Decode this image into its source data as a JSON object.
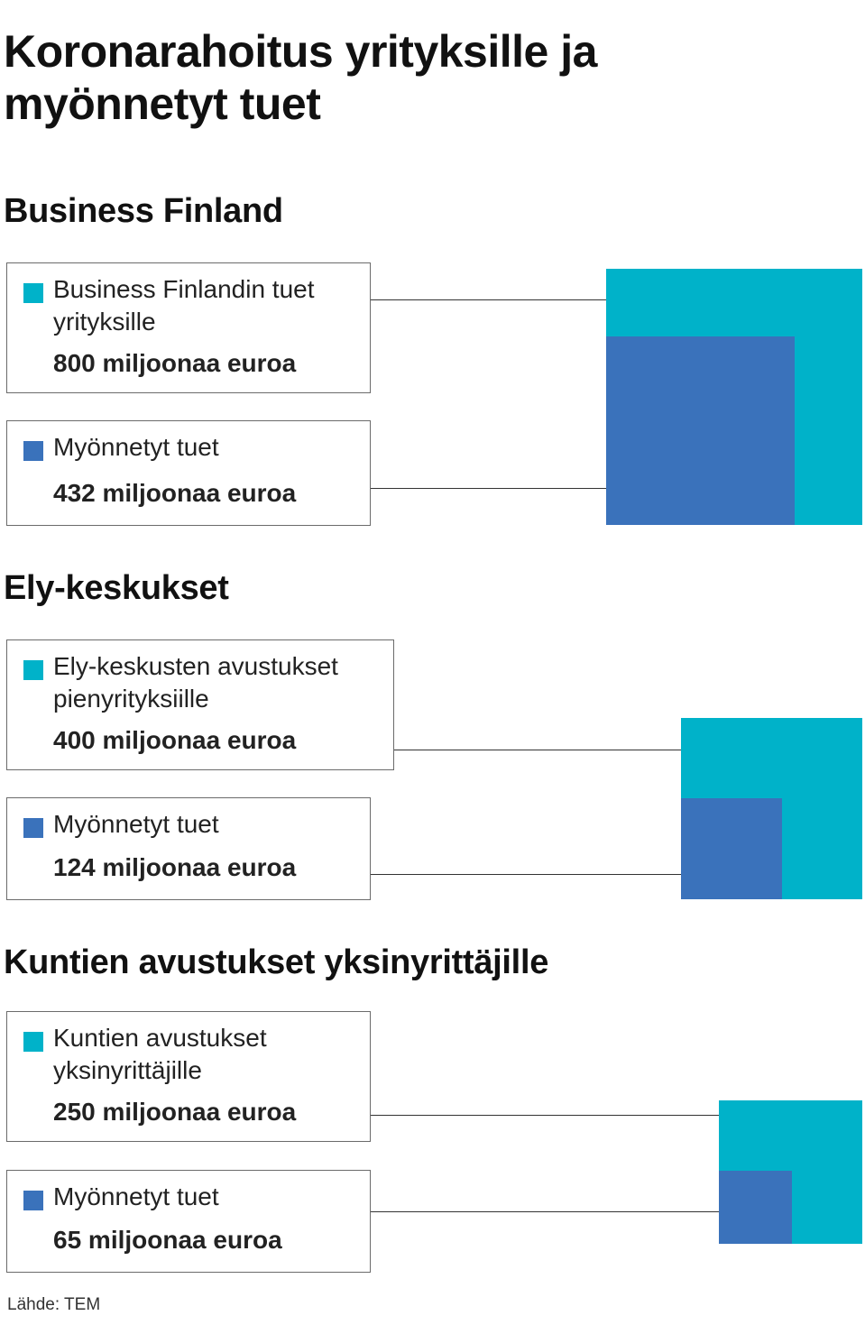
{
  "title": "Koronarahoitus yrityksille ja myönnetyt tuet",
  "source": "Lähde: TEM",
  "colors": {
    "total": "#00b2c9",
    "granted": "#3a72bb"
  },
  "chart_data": [
    {
      "type": "nested-square",
      "title": "Business Finland",
      "series": [
        {
          "name": "Business Finlandin tuet yrityksille",
          "value": 800,
          "value_label": "800 miljoonaa euroa"
        },
        {
          "name": "Myönnetyt tuet",
          "value": 432,
          "value_label": "432 miljoonaa euroa"
        }
      ],
      "unit": "miljoonaa euroa"
    },
    {
      "type": "nested-square",
      "title": "Ely-keskukset",
      "series": [
        {
          "name": "Ely-keskusten avustukset pienyrityksiille",
          "value": 400,
          "value_label": "400 miljoonaa euroa"
        },
        {
          "name": "Myönnetyt tuet",
          "value": 124,
          "value_label": "124 miljoonaa euroa"
        }
      ],
      "unit": "miljoonaa euroa"
    },
    {
      "type": "nested-square",
      "title": "Kuntien avustukset yksinyrittäjille",
      "series": [
        {
          "name": "Kuntien avustukset yksinyrittäjille",
          "value": 250,
          "value_label": "250 miljoonaa euroa"
        },
        {
          "name": "Myönnetyt tuet",
          "value": 65,
          "value_label": "65 miljoonaa euroa"
        }
      ],
      "unit": "miljoonaa euroa"
    }
  ]
}
